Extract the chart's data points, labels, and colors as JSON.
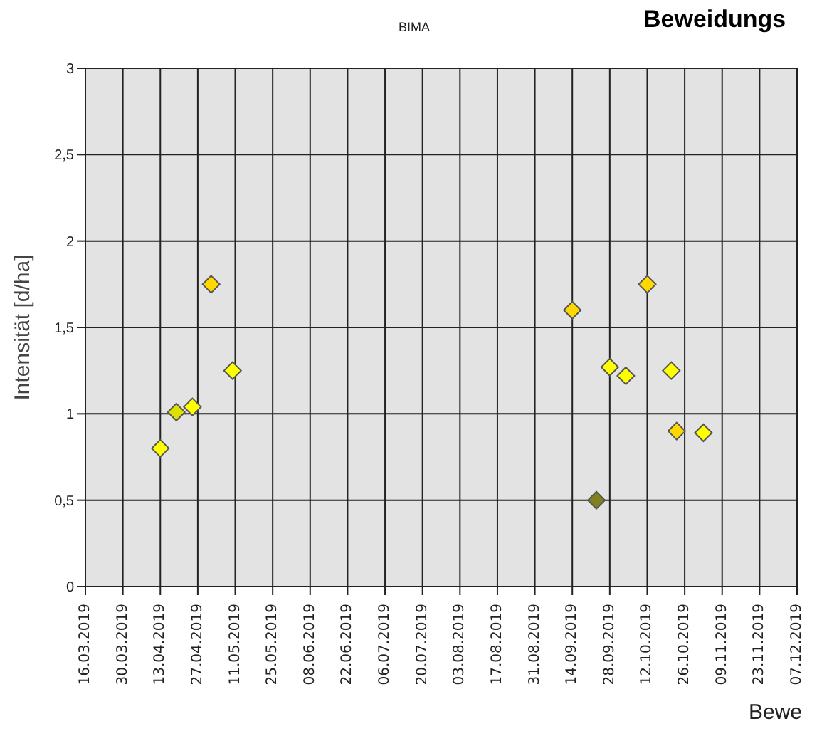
{
  "chart_data": {
    "type": "scatter",
    "title": "Beweidungs",
    "subtitle": "BIMA",
    "xlabel": "Bewe",
    "ylabel": "Intensität [d/ha]",
    "x": [
      "2019-04-13",
      "2019-04-19",
      "2019-04-25",
      "2019-05-02",
      "2019-05-10",
      "2019-09-14",
      "2019-09-23",
      "2019-09-28",
      "2019-10-04",
      "2019-10-12",
      "2019-10-21",
      "2019-10-23",
      "2019-11-02"
    ],
    "values": [
      0.8,
      1.01,
      1.04,
      1.75,
      1.25,
      1.6,
      0.5,
      1.27,
      1.22,
      1.75,
      1.25,
      0.9,
      0.89
    ],
    "colors": [
      "#ffff00",
      "#e0e000",
      "#ffff00",
      "#ffd800",
      "#ffff00",
      "#ffd800",
      "#808020",
      "#ffff00",
      "#ffff00",
      "#ffd800",
      "#ffff00",
      "#ffd800",
      "#ffff00"
    ],
    "xlim": [
      "2019-03-16",
      "2019-12-07"
    ],
    "xticks": [
      {
        "value": "2019-03-16",
        "label": "16.03.2019"
      },
      {
        "value": "2019-03-30",
        "label": "30.03.2019"
      },
      {
        "value": "2019-04-13",
        "label": "13.04.2019"
      },
      {
        "value": "2019-04-27",
        "label": "27.04.2019"
      },
      {
        "value": "2019-05-11",
        "label": "11.05.2019"
      },
      {
        "value": "2019-05-25",
        "label": "25.05.2019"
      },
      {
        "value": "2019-06-08",
        "label": "08.06.2019"
      },
      {
        "value": "2019-06-22",
        "label": "22.06.2019"
      },
      {
        "value": "2019-07-06",
        "label": "06.07.2019"
      },
      {
        "value": "2019-07-20",
        "label": "20.07.2019"
      },
      {
        "value": "2019-08-03",
        "label": "03.08.2019"
      },
      {
        "value": "2019-08-17",
        "label": "17.08.2019"
      },
      {
        "value": "2019-08-31",
        "label": "31.08.2019"
      },
      {
        "value": "2019-09-14",
        "label": "14.09.2019"
      },
      {
        "value": "2019-09-28",
        "label": "28.09.2019"
      },
      {
        "value": "2019-10-12",
        "label": "12.10.2019"
      },
      {
        "value": "2019-10-26",
        "label": "26.10.2019"
      },
      {
        "value": "2019-11-09",
        "label": "09.11.2019"
      },
      {
        "value": "2019-11-23",
        "label": "23.11.2019"
      },
      {
        "value": "2019-12-07",
        "label": "07.12.2019"
      }
    ],
    "ylim": [
      0,
      3
    ],
    "yticks": [
      0,
      {
        "value": 0.5,
        "label": "0,5"
      },
      1,
      {
        "value": 1.5,
        "label": "1,5"
      },
      2,
      {
        "value": 2.5,
        "label": "2,5"
      },
      3
    ],
    "grid": true,
    "marker": "diamond"
  }
}
